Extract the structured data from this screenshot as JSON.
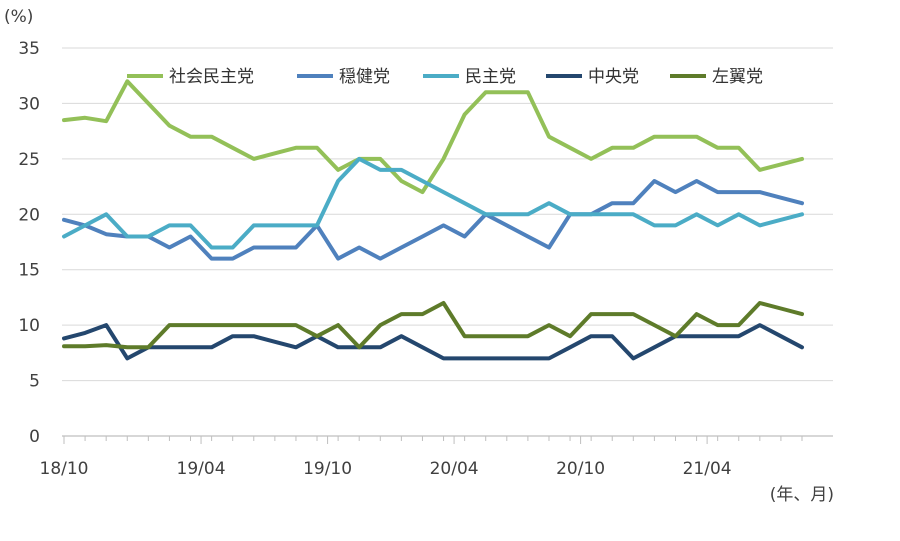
{
  "chart_data": {
    "type": "line",
    "y_unit": "(%)",
    "x_unit": "(年、月)",
    "ylim": [
      0,
      35
    ],
    "yticks": [
      0,
      5,
      10,
      15,
      20,
      25,
      30,
      35
    ],
    "x_tick_labels": [
      "18/10",
      "19/04",
      "19/10",
      "20/04",
      "20/10",
      "21/04"
    ],
    "x_tick_positions": [
      0,
      6.5,
      12.5,
      18.5,
      24.5,
      30.5
    ],
    "x_count": 36,
    "grid": "horizontal",
    "legend_position": "top",
    "series": [
      {
        "name": "社会民主党",
        "color": "#93c058",
        "values": [
          28.5,
          28.7,
          28.4,
          32,
          30,
          28,
          27,
          27,
          26,
          25,
          25.5,
          26,
          26,
          24,
          25,
          25,
          23,
          22,
          25,
          29,
          31,
          31,
          31,
          27,
          26,
          25,
          26,
          26,
          27,
          27,
          27,
          26,
          26,
          24,
          24.5,
          25
        ]
      },
      {
        "name": "穏健党",
        "color": "#4f81bd",
        "values": [
          19.5,
          19,
          18.2,
          18,
          18,
          17,
          18,
          16,
          16,
          17,
          17,
          17,
          19,
          16,
          17,
          16,
          17,
          18,
          19,
          18,
          20,
          19,
          18,
          17,
          20,
          20,
          21,
          21,
          23,
          22,
          23,
          22,
          22,
          22,
          21.5,
          21
        ]
      },
      {
        "name": "民主党",
        "color": "#4bacc6",
        "values": [
          18,
          19,
          20,
          18,
          18,
          19,
          19,
          17,
          17,
          19,
          19,
          19,
          19,
          23,
          25,
          24,
          24,
          23,
          22,
          21,
          20,
          20,
          20,
          21,
          20,
          20,
          20,
          20,
          19,
          19,
          20,
          19,
          20,
          19,
          19.5,
          20
        ]
      },
      {
        "name": "中央党",
        "color": "#24476e",
        "values": [
          8.8,
          9.3,
          10,
          7,
          8,
          8,
          8,
          8,
          9,
          9,
          8.5,
          8,
          9,
          8,
          8,
          8,
          9,
          8,
          7,
          7,
          7,
          7,
          7,
          7,
          8,
          9,
          9,
          7,
          8,
          9,
          9,
          9,
          9,
          10,
          9,
          8
        ]
      },
      {
        "name": "左翼党",
        "color": "#5e7b2a",
        "values": [
          8.1,
          8.1,
          8.2,
          8,
          8,
          10,
          10,
          10,
          10,
          10,
          10,
          10,
          9,
          10,
          8,
          10,
          11,
          11,
          12,
          9,
          9,
          9,
          9,
          10,
          9,
          11,
          11,
          11,
          10,
          9,
          11,
          10,
          10,
          12,
          11.5,
          11
        ]
      }
    ]
  }
}
